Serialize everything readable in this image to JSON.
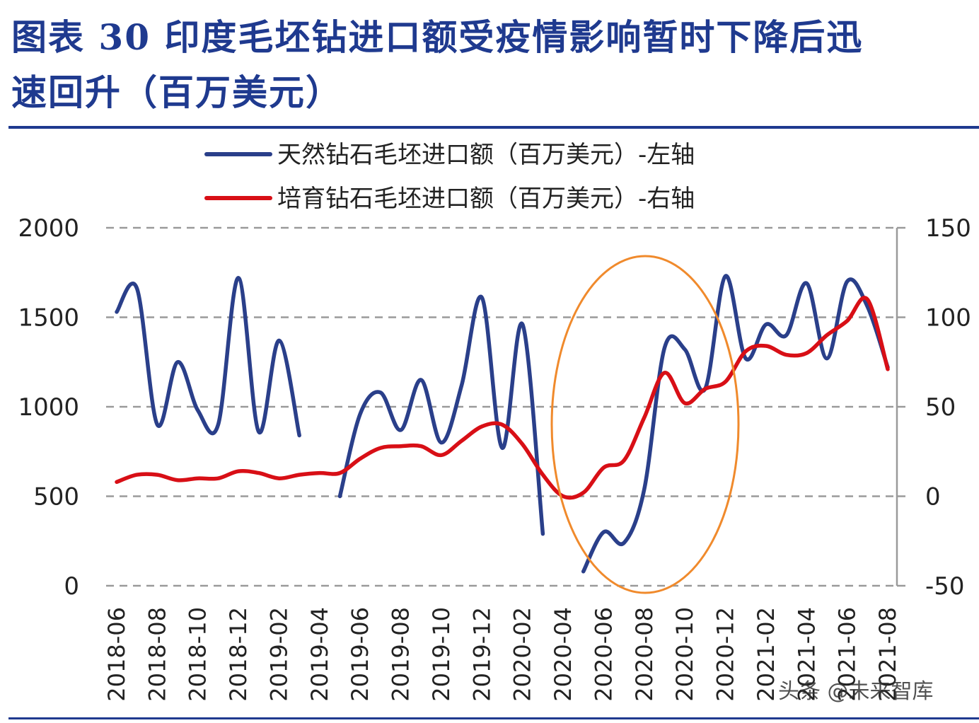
{
  "figure": {
    "title_line1": "图表 30 印度毛坯钻进口额受疫情影响暂时下降后迅",
    "title_line2": "速回升（百万美元）"
  },
  "watermark": "头条 @未来智库",
  "colors": {
    "title": "#1f3a8f",
    "natural": "#2a3f8a",
    "lab": "#d80f16",
    "annotation": "#f08a2c",
    "grid": "#9a9a9a"
  },
  "chart_data": {
    "type": "line",
    "categories": [
      "2018-06",
      "2018-07",
      "2018-08",
      "2018-09",
      "2018-10",
      "2018-11",
      "2018-12",
      "2019-01",
      "2019-02",
      "2019-03",
      "2019-04",
      "2019-05",
      "2019-06",
      "2019-07",
      "2019-08",
      "2019-09",
      "2019-10",
      "2019-11",
      "2019-12",
      "2020-01",
      "2020-02",
      "2020-03",
      "2020-04",
      "2020-05",
      "2020-06",
      "2020-07",
      "2020-08",
      "2020-09",
      "2020-10",
      "2020-11",
      "2020-12",
      "2021-01",
      "2021-02",
      "2021-03",
      "2021-04",
      "2021-05",
      "2021-06",
      "2021-07",
      "2021-08"
    ],
    "tick_labels": [
      "2018-06",
      "2018-08",
      "2018-10",
      "2018-12",
      "2019-02",
      "2019-04",
      "2019-06",
      "2019-08",
      "2019-10",
      "2019-12",
      "2020-02",
      "2020-04",
      "2020-06",
      "2020-08",
      "2020-10",
      "2020-12",
      "2021-02",
      "2021-04",
      "2021-06",
      "2021-08"
    ],
    "left_axis": {
      "ylim": [
        0,
        2000
      ],
      "ticks": [
        "2000",
        "1500",
        "1000",
        "500",
        "0"
      ]
    },
    "right_axis": {
      "ylim": [
        -50,
        150
      ],
      "ticks": [
        "150",
        "100",
        "50",
        "0",
        "-50"
      ]
    },
    "series": [
      {
        "name": "天然钻石毛坯进口额（百万美元）-左轴",
        "axis": "left",
        "values": [
          1530,
          1660,
          900,
          1250,
          980,
          900,
          1720,
          860,
          1370,
          840,
          null,
          500,
          960,
          1080,
          870,
          1150,
          800,
          1120,
          1610,
          770,
          1460,
          290,
          null,
          80,
          300,
          240,
          540,
          1330,
          1320,
          1100,
          1730,
          1270,
          1460,
          1400,
          1690,
          1270,
          1700,
          1560,
          1220
        ]
      },
      {
        "name": "培育钻石毛坯进口额（百万美元）-右轴",
        "axis": "right",
        "values": [
          8,
          12,
          12,
          9,
          10,
          10,
          14,
          13,
          10,
          12,
          13,
          13,
          21,
          27,
          28,
          28,
          23,
          31,
          39,
          40,
          29,
          12,
          0,
          2,
          16,
          20,
          44,
          69,
          52,
          60,
          64,
          81,
          84,
          79,
          80,
          90,
          98,
          110,
          71
        ]
      }
    ],
    "grid": true,
    "legend_position": "top-center",
    "annotation": "orange ellipse highlighting 2020-04 to 2020-12"
  }
}
